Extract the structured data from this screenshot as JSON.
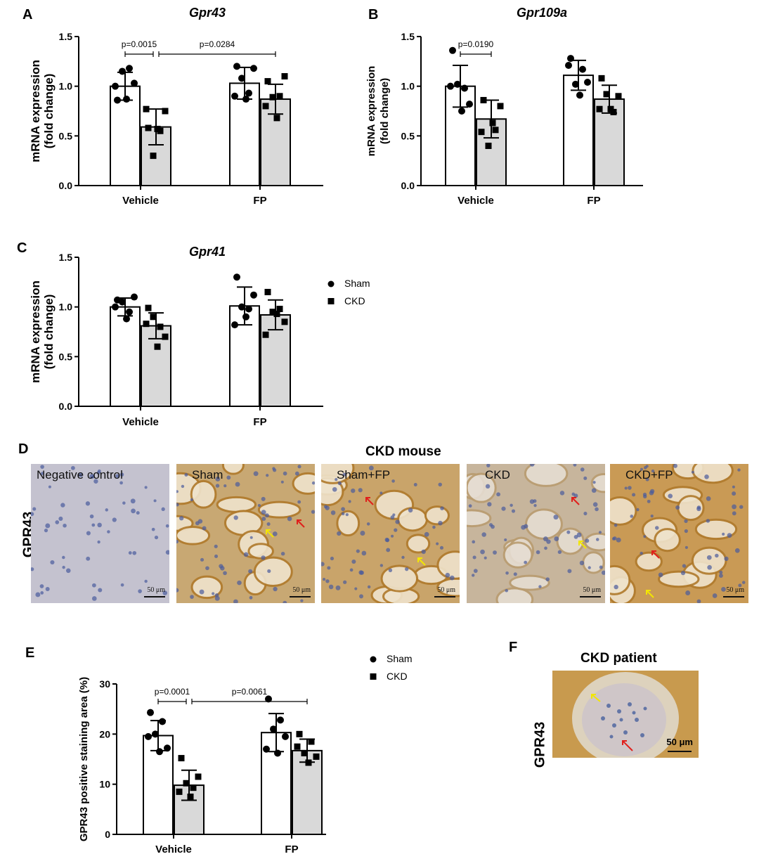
{
  "panels": {
    "A": "A",
    "B": "B",
    "C": "C",
    "D": "D",
    "E": "E",
    "F": "F"
  },
  "legend": {
    "sham": "Sham",
    "ckd": "CKD"
  },
  "colors": {
    "sham_fill": "#ffffff",
    "ckd_fill": "#d9d9d9",
    "stroke": "#000000",
    "yellow_arrow": "#f2e600",
    "red_arrow": "#e0201c"
  },
  "chart_data": [
    {
      "id": "A",
      "type": "bar",
      "title": "Gpr43",
      "ylabel": "mRNA expression\n(fold change)",
      "categories": [
        "Vehicle",
        "FP"
      ],
      "ylim": [
        0,
        1.5
      ],
      "yticks": [
        "0.0",
        "0.5",
        "1.0",
        "1.5"
      ],
      "series": [
        {
          "name": "Sham",
          "marker": "circle",
          "values": [
            1.0,
            1.03
          ],
          "sd": [
            0.14,
            0.16
          ],
          "points": [
            [
              0.86,
              1.18,
              1.03,
              1.0,
              0.87,
              1.15
            ],
            [
              1.2,
              0.93,
              1.18,
              0.9,
              0.87,
              1.08
            ]
          ]
        },
        {
          "name": "CKD",
          "marker": "square",
          "values": [
            0.59,
            0.87
          ],
          "sd": [
            0.18,
            0.15
          ],
          "points": [
            [
              0.58,
              0.55,
              0.75,
              0.77,
              0.57,
              0.3
            ],
            [
              1.05,
              0.9,
              1.1,
              0.8,
              0.68,
              0.89
            ]
          ]
        }
      ],
      "brackets": [
        {
          "label": "p=0.0015",
          "from": [
            0,
            0
          ],
          "to": [
            0,
            1
          ]
        },
        {
          "label": "p=0.0284",
          "from": [
            0,
            1
          ],
          "to": [
            1,
            1
          ]
        }
      ]
    },
    {
      "id": "B",
      "type": "bar",
      "title": "Gpr109a",
      "ylabel": "mRNA expression\n(fold change)",
      "categories": [
        "Vehicle",
        "FP"
      ],
      "ylim": [
        0,
        1.5
      ],
      "yticks": [
        "0.0",
        "0.5",
        "1.0",
        "1.5"
      ],
      "series": [
        {
          "name": "Sham",
          "marker": "circle",
          "values": [
            1.0,
            1.11
          ],
          "sd": [
            0.21,
            0.15
          ],
          "points": [
            [
              1.36,
              0.98,
              0.82,
              1.0,
              0.75,
              1.02
            ],
            [
              1.28,
              1.17,
              1.04,
              1.21,
              0.91,
              1.02
            ]
          ]
        },
        {
          "name": "CKD",
          "marker": "square",
          "values": [
            0.67,
            0.87
          ],
          "sd": [
            0.19,
            0.14
          ],
          "points": [
            [
              0.86,
              0.56,
              0.8,
              0.54,
              0.63,
              0.4
            ],
            [
              1.08,
              0.74,
              0.9,
              0.77,
              0.77,
              0.92
            ]
          ]
        }
      ],
      "brackets": [
        {
          "label": "p=0.0190",
          "from": [
            0,
            0
          ],
          "to": [
            0,
            1
          ]
        }
      ]
    },
    {
      "id": "C",
      "type": "bar",
      "title": "Gpr41",
      "ylabel": "mRNA expression\n(fold change)",
      "categories": [
        "Vehicle",
        "FP"
      ],
      "ylim": [
        0,
        1.5
      ],
      "yticks": [
        "0.0",
        "0.5",
        "1.0",
        "1.5"
      ],
      "series": [
        {
          "name": "Sham",
          "marker": "circle",
          "values": [
            1.0,
            1.01
          ],
          "sd": [
            0.09,
            0.19
          ],
          "points": [
            [
              1.07,
              0.95,
              1.1,
              1.0,
              0.88,
              1.05
            ],
            [
              1.3,
              0.98,
              1.12,
              0.82,
              0.9,
              1.0
            ]
          ]
        },
        {
          "name": "CKD",
          "marker": "square",
          "values": [
            0.81,
            0.92
          ],
          "sd": [
            0.13,
            0.15
          ],
          "points": [
            [
              0.99,
              0.8,
              0.7,
              0.83,
              0.6,
              0.9
            ],
            [
              1.15,
              0.98,
              0.85,
              0.72,
              0.93,
              0.95
            ]
          ]
        }
      ],
      "brackets": []
    },
    {
      "id": "E",
      "type": "bar",
      "title": "",
      "ylabel": "GPR43 positive staining area (%)",
      "categories": [
        "Vehicle",
        "FP"
      ],
      "ylim": [
        0,
        30
      ],
      "yticks": [
        "0",
        "10",
        "20",
        "30"
      ],
      "series": [
        {
          "name": "Sham",
          "marker": "circle",
          "values": [
            19.7,
            20.3
          ],
          "sd": [
            3.0,
            3.8
          ],
          "points": [
            [
              24.3,
              22.5,
              17.2,
              19.5,
              16.5,
              20.0
            ],
            [
              27.0,
              22.8,
              19.5,
              17.0,
              16.2,
              21.0
            ]
          ]
        },
        {
          "name": "CKD",
          "marker": "square",
          "values": [
            9.8,
            16.7
          ],
          "sd": [
            3.0,
            2.3
          ],
          "points": [
            [
              15.2,
              9.3,
              11.5,
              8.5,
              7.5,
              10.2
            ],
            [
              20.0,
              18.5,
              15.5,
              17.5,
              14.3,
              16.2
            ]
          ]
        }
      ],
      "brackets": [
        {
          "label": "p=0.0001",
          "from": [
            0,
            0
          ],
          "to": [
            0,
            1
          ]
        },
        {
          "label": "p=0.0061",
          "from": [
            0,
            1
          ],
          "to": [
            1,
            1
          ]
        }
      ]
    }
  ],
  "panelD": {
    "title": "CKD mouse",
    "row_label": "GPR43",
    "images": [
      {
        "label": "Negative control",
        "scale": "50 μm"
      },
      {
        "label": "Sham",
        "scale": "50 μm"
      },
      {
        "label": "Sham+FP",
        "scale": "50 μm"
      },
      {
        "label": "CKD",
        "scale": "50 μm"
      },
      {
        "label": "CKD+FP",
        "scale": "50 μm"
      }
    ]
  },
  "panelF": {
    "title": "CKD patient",
    "row_label": "GPR43",
    "scale": "50 μm"
  }
}
